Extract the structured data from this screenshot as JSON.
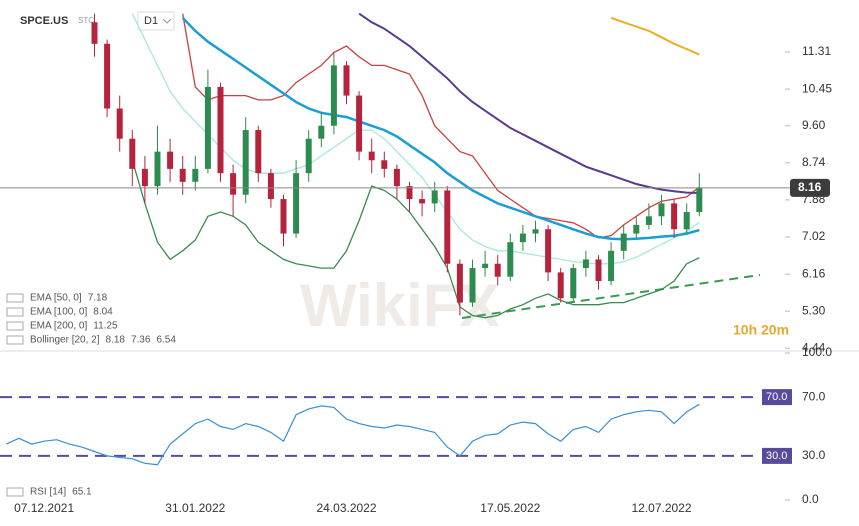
{
  "header": {
    "symbol": "SPCE.US",
    "source": "STC",
    "timeframe": "D1"
  },
  "watermark": "WikiFX",
  "timer": "10h 20m",
  "chart_data": [
    {
      "type": "candlestick",
      "categories": [
        null,
        null,
        null,
        "07.12.2021",
        null,
        null,
        null,
        null,
        null,
        null,
        null,
        null,
        null,
        null,
        null,
        "31.01.2022",
        null,
        null,
        null,
        null,
        null,
        null,
        null,
        null,
        null,
        null,
        null,
        "24.03.2022",
        null,
        null,
        null,
        null,
        null,
        null,
        null,
        null,
        null,
        null,
        null,
        null,
        "17.05.2022",
        null,
        null,
        null,
        null,
        null,
        null,
        null,
        null,
        null,
        null,
        null,
        "12.07.2022",
        null,
        null,
        null
      ],
      "open": [
        null,
        null,
        null,
        null,
        null,
        null,
        null,
        12.0,
        11.5,
        10.0,
        9.3,
        8.6,
        8.2,
        9.0,
        8.6,
        8.3,
        8.6,
        10.5,
        8.5,
        8.0,
        9.5,
        8.5,
        7.9,
        7.1,
        8.5,
        9.3,
        9.6,
        11.0,
        10.3,
        9.0,
        8.8,
        8.6,
        8.2,
        7.9,
        7.8,
        8.1,
        6.4,
        5.5,
        6.3,
        6.4,
        6.1,
        6.9,
        7.1,
        7.2,
        6.2,
        5.6,
        6.3,
        6.5,
        6.0,
        6.7,
        7.1,
        7.3,
        7.5,
        7.8,
        7.2,
        7.6
      ],
      "high": [
        null,
        null,
        null,
        null,
        null,
        null,
        null,
        12.2,
        11.6,
        10.3,
        9.5,
        8.9,
        9.6,
        9.3,
        8.9,
        8.9,
        10.9,
        10.6,
        8.7,
        9.8,
        9.6,
        8.6,
        8.0,
        8.8,
        9.5,
        9.9,
        11.3,
        11.1,
        10.4,
        9.3,
        9.0,
        8.7,
        8.3,
        8.1,
        8.3,
        8.2,
        6.5,
        6.5,
        6.7,
        6.6,
        7.1,
        7.3,
        7.4,
        7.3,
        6.3,
        6.4,
        6.7,
        6.6,
        6.9,
        7.3,
        7.5,
        7.8,
        8.0,
        7.9,
        7.8,
        8.5
      ],
      "low": [
        null,
        null,
        null,
        null,
        null,
        null,
        null,
        11.2,
        9.8,
        9.0,
        8.2,
        7.8,
        8.0,
        8.3,
        8.0,
        8.1,
        8.5,
        8.3,
        7.5,
        7.8,
        8.3,
        7.7,
        6.8,
        7.0,
        8.3,
        9.1,
        9.4,
        10.1,
        8.8,
        8.5,
        8.4,
        7.9,
        7.6,
        7.5,
        7.6,
        6.2,
        5.2,
        5.4,
        6.1,
        5.9,
        6.0,
        6.7,
        6.9,
        6.0,
        5.5,
        5.5,
        6.1,
        5.8,
        5.9,
        6.5,
        7.0,
        7.2,
        7.3,
        7.0,
        7.1,
        7.5
      ],
      "close": [
        null,
        null,
        null,
        null,
        null,
        null,
        null,
        11.5,
        10.0,
        9.3,
        8.6,
        8.2,
        9.0,
        8.6,
        8.3,
        8.6,
        10.5,
        8.5,
        8.0,
        9.5,
        8.5,
        7.9,
        7.1,
        8.5,
        9.3,
        9.6,
        11.0,
        10.3,
        9.0,
        8.8,
        8.6,
        8.2,
        7.9,
        7.8,
        8.1,
        6.4,
        5.5,
        6.3,
        6.4,
        6.1,
        6.9,
        7.1,
        7.2,
        6.2,
        5.6,
        6.3,
        6.5,
        6.0,
        6.7,
        7.1,
        7.3,
        7.5,
        7.8,
        7.2,
        7.6,
        8.16
      ],
      "up_color": "#2e8b4f",
      "down_color": "#b5243c",
      "ylim": [
        4.4,
        12.4
      ],
      "yticks": [
        11.31,
        10.45,
        {
          "value": 9.6,
          "label": "9.60"
        },
        8.74,
        7.88,
        7.02,
        6.16,
        {
          "value": 5.3,
          "label": "5.30"
        },
        4.44
      ],
      "last_price": 8.16,
      "indicators": [
        {
          "name": "EMA [50, 0]",
          "color": "#1a9ed6",
          "width": 2.5,
          "values": [
            null,
            null,
            null,
            null,
            null,
            null,
            null,
            null,
            null,
            null,
            null,
            null,
            null,
            null,
            12.1,
            11.8,
            11.55,
            11.35,
            11.15,
            10.95,
            10.75,
            10.55,
            10.35,
            10.15,
            10.0,
            9.9,
            9.85,
            9.8,
            9.7,
            9.6,
            9.5,
            9.35,
            9.15,
            8.95,
            8.75,
            8.5,
            8.3,
            8.1,
            7.95,
            7.8,
            7.7,
            7.6,
            7.5,
            7.4,
            7.3,
            7.2,
            7.1,
            7.02,
            6.98,
            6.97,
            6.98,
            7.0,
            7.03,
            7.05,
            7.1,
            7.18
          ]
        },
        {
          "name": "EMA [100, 0]",
          "color": "#5b3a8e",
          "width": 2,
          "values": [
            null,
            null,
            null,
            null,
            null,
            null,
            null,
            null,
            null,
            null,
            null,
            null,
            null,
            null,
            null,
            null,
            null,
            null,
            null,
            null,
            null,
            null,
            null,
            null,
            null,
            null,
            null,
            null,
            12.2,
            12.0,
            11.85,
            11.65,
            11.45,
            11.2,
            10.95,
            10.7,
            10.4,
            10.15,
            9.95,
            9.75,
            9.55,
            9.4,
            9.25,
            9.1,
            8.95,
            8.8,
            8.65,
            8.55,
            8.45,
            8.35,
            8.25,
            8.18,
            8.12,
            8.08,
            8.05,
            8.04
          ]
        },
        {
          "name": "EMA [200, 0]",
          "color": "#e8b020",
          "width": 2,
          "values": [
            null,
            null,
            null,
            null,
            null,
            null,
            null,
            null,
            null,
            null,
            null,
            null,
            null,
            null,
            null,
            null,
            null,
            null,
            null,
            null,
            null,
            null,
            null,
            null,
            null,
            null,
            null,
            null,
            null,
            null,
            null,
            null,
            null,
            null,
            null,
            null,
            null,
            null,
            null,
            null,
            null,
            null,
            null,
            null,
            null,
            null,
            null,
            null,
            12.1,
            12.0,
            11.9,
            11.8,
            11.65,
            11.5,
            11.38,
            11.25
          ]
        }
      ],
      "bollinger": {
        "name": "Bollinger [20, 2]",
        "bands": [
          {
            "color": "#c94040",
            "values": [
              null,
              null,
              null,
              null,
              null,
              null,
              null,
              null,
              null,
              null,
              null,
              null,
              null,
              null,
              12.2,
              10.5,
              10.2,
              10.3,
              10.3,
              10.3,
              10.2,
              10.2,
              10.3,
              10.6,
              10.8,
              11.0,
              11.3,
              11.45,
              11.2,
              11.0,
              11.0,
              10.9,
              10.8,
              10.3,
              9.6,
              9.3,
              9.0,
              8.9,
              8.5,
              8.1,
              7.9,
              7.7,
              7.5,
              7.45,
              7.4,
              7.35,
              7.2,
              7.0,
              7.05,
              7.3,
              7.5,
              7.7,
              7.85,
              7.9,
              7.95,
              8.18
            ]
          },
          {
            "color": "#a8e6e0",
            "values": [
              null,
              null,
              null,
              null,
              null,
              null,
              null,
              null,
              null,
              null,
              12.2,
              11.6,
              11.0,
              10.4,
              10.0,
              9.7,
              9.4,
              9.1,
              8.8,
              8.6,
              8.5,
              8.5,
              8.5,
              8.6,
              8.7,
              8.9,
              9.1,
              9.3,
              9.5,
              9.5,
              9.3,
              9.0,
              8.7,
              8.4,
              8.0,
              7.6,
              7.2,
              6.95,
              6.8,
              6.7,
              6.7,
              6.65,
              6.6,
              6.55,
              6.5,
              6.45,
              6.42,
              6.4,
              6.4,
              6.45,
              6.55,
              6.7,
              6.85,
              7.0,
              7.15,
              7.36
            ]
          },
          {
            "color": "#3a8a50",
            "values": [
              null,
              null,
              null,
              null,
              null,
              null,
              null,
              null,
              null,
              null,
              8.8,
              7.8,
              6.9,
              6.5,
              6.7,
              6.95,
              7.5,
              7.6,
              7.5,
              7.3,
              6.9,
              6.7,
              6.5,
              6.4,
              6.35,
              6.3,
              6.3,
              6.7,
              7.4,
              8.2,
              8.1,
              7.9,
              7.6,
              7.2,
              6.8,
              6.3,
              5.4,
              5.2,
              5.15,
              5.2,
              5.35,
              5.45,
              5.6,
              5.7,
              5.55,
              5.45,
              5.45,
              5.45,
              5.5,
              5.5,
              5.6,
              5.7,
              5.8,
              6.0,
              6.4,
              6.54
            ]
          }
        ]
      }
    },
    {
      "type": "line",
      "name": "RSI [14]",
      "color": "#3a8fd0",
      "values": [
        38,
        42,
        38,
        40,
        41,
        38,
        36,
        33,
        30,
        29,
        28,
        25,
        24,
        38,
        45,
        52,
        55,
        50,
        48,
        52,
        50,
        46,
        40,
        58,
        62,
        64,
        63,
        55,
        52,
        50,
        49,
        51,
        50,
        48,
        46,
        36,
        30,
        40,
        44,
        45,
        51,
        53,
        52,
        45,
        40,
        48,
        50,
        46,
        55,
        58,
        60,
        61,
        60,
        52,
        60,
        65.1
      ],
      "ylim": [
        0,
        100
      ],
      "yticks": [
        {
          "value": 100,
          "label": "100.0"
        },
        {
          "value": 70,
          "label": "70.0"
        },
        {
          "value": 30,
          "label": "30.0"
        },
        {
          "value": 0,
          "label": "0.0"
        }
      ],
      "levels": [
        {
          "value": 70,
          "label": "70.0"
        },
        {
          "value": 30,
          "label": "30.0"
        }
      ],
      "level_color": "#5a4a9c"
    }
  ]
}
